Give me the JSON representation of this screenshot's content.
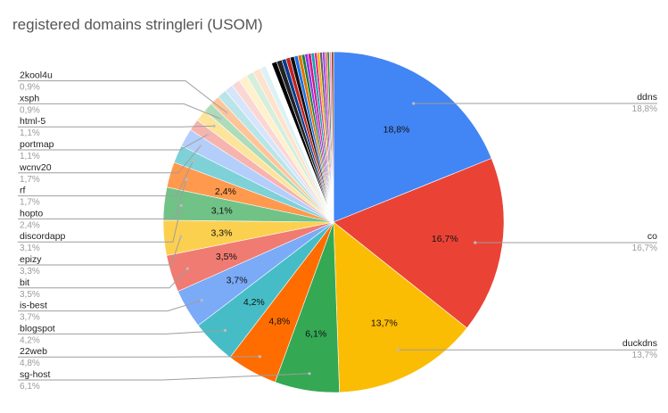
{
  "chart_data": {
    "type": "pie",
    "title": "registered domains stringleri (USOM)",
    "slices": [
      {
        "label": "ddns",
        "value": 18.8,
        "display": "18,8%",
        "legend_pct": "18,8%",
        "color": "#4285f4",
        "side": "right"
      },
      {
        "label": "co",
        "value": 16.7,
        "display": "16,7%",
        "legend_pct": "16,7%",
        "color": "#ea4335",
        "side": "right"
      },
      {
        "label": "duckdns",
        "value": 13.7,
        "display": "13,7%",
        "legend_pct": "13,7%",
        "color": "#fbbc04",
        "side": "right"
      },
      {
        "label": "sg-host",
        "value": 6.1,
        "display": "6,1%",
        "legend_pct": "6,1%",
        "color": "#34a853",
        "side": "left"
      },
      {
        "label": "22web",
        "value": 4.8,
        "display": "4,8%",
        "legend_pct": "4,8%",
        "color": "#ff6d01",
        "side": "left"
      },
      {
        "label": "blogspot",
        "value": 4.2,
        "display": "4,2%",
        "legend_pct": "4,2%",
        "color": "#46bdc6",
        "side": "left"
      },
      {
        "label": "is-best",
        "value": 3.7,
        "display": "3,7%",
        "legend_pct": "3,7%",
        "color": "#7baaf7",
        "side": "left"
      },
      {
        "label": "bit",
        "value": 3.5,
        "display": "3,5%",
        "legend_pct": "3,5%",
        "color": "#f07b72",
        "side": "left"
      },
      {
        "label": "epizy",
        "value": 3.3,
        "display": "3,3%",
        "legend_pct": "3,3%",
        "color": "#fcd04f",
        "side": "left"
      },
      {
        "label": "discordapp",
        "value": 3.1,
        "display": "3,1%",
        "legend_pct": "3,1%",
        "color": "#71c287",
        "side": "left"
      },
      {
        "label": "hopto",
        "value": 2.4,
        "display": "2,4%",
        "legend_pct": "2,4%",
        "color": "#ff994d",
        "side": "left"
      },
      {
        "label": "rf",
        "value": 1.7,
        "display": "",
        "legend_pct": "1,7%",
        "color": "#7ed1d7",
        "side": "left"
      },
      {
        "label": "wcnv20",
        "value": 1.7,
        "display": "",
        "legend_pct": "1,7%",
        "color": "#b3cefb",
        "side": "left"
      },
      {
        "label": "portmap",
        "value": 1.1,
        "display": "",
        "legend_pct": "1,1%",
        "color": "#f7b4ae",
        "side": "left"
      },
      {
        "label": "html-5",
        "value": 1.1,
        "display": "",
        "legend_pct": "1,1%",
        "color": "#fde49b",
        "side": "left"
      },
      {
        "label": "xsph",
        "value": 0.9,
        "display": "",
        "legend_pct": "0,9%",
        "color": "#aedcba",
        "side": "left"
      },
      {
        "label": "2kool4u",
        "value": 0.9,
        "display": "",
        "legend_pct": "0,9%",
        "color": "#ffc599",
        "side": "left"
      }
    ],
    "other_slices": [
      {
        "value": 0.9,
        "color": "#b9e5e8"
      },
      {
        "value": 0.8,
        "color": "#d6e4fc"
      },
      {
        "value": 0.8,
        "color": "#fbd7d4"
      },
      {
        "value": 0.8,
        "color": "#fef1cc"
      },
      {
        "value": 0.7,
        "color": "#d6eedc"
      },
      {
        "value": 0.7,
        "color": "#ffe2cc"
      },
      {
        "value": 0.6,
        "color": "#dcf2f4"
      },
      {
        "value": 0.6,
        "color": "#ffffff"
      },
      {
        "value": 0.5,
        "color": "#000000"
      },
      {
        "value": 0.5,
        "color": "#222222"
      },
      {
        "value": 0.4,
        "color": "#0b3d91"
      },
      {
        "value": 0.4,
        "color": "#c5221f"
      },
      {
        "value": 0.4,
        "color": "#111111"
      },
      {
        "value": 0.35,
        "color": "#1a73e8"
      },
      {
        "value": 0.35,
        "color": "#e37400"
      },
      {
        "value": 0.3,
        "color": "#188038"
      },
      {
        "value": 0.3,
        "color": "#9334e6"
      },
      {
        "value": 0.3,
        "color": "#d01884"
      },
      {
        "value": 0.3,
        "color": "#12a4af"
      },
      {
        "value": 0.25,
        "color": "#e52592"
      },
      {
        "value": 0.25,
        "color": "#f9ab00"
      },
      {
        "value": 0.25,
        "color": "#5f6368"
      },
      {
        "value": 0.25,
        "color": "#a142f4"
      },
      {
        "value": 0.2,
        "color": "#ee675c"
      },
      {
        "value": 0.2,
        "color": "#1e8e3e"
      },
      {
        "value": 0.2,
        "color": "#ff8bcb"
      },
      {
        "value": 0.2,
        "color": "#8c4a1c"
      }
    ]
  }
}
